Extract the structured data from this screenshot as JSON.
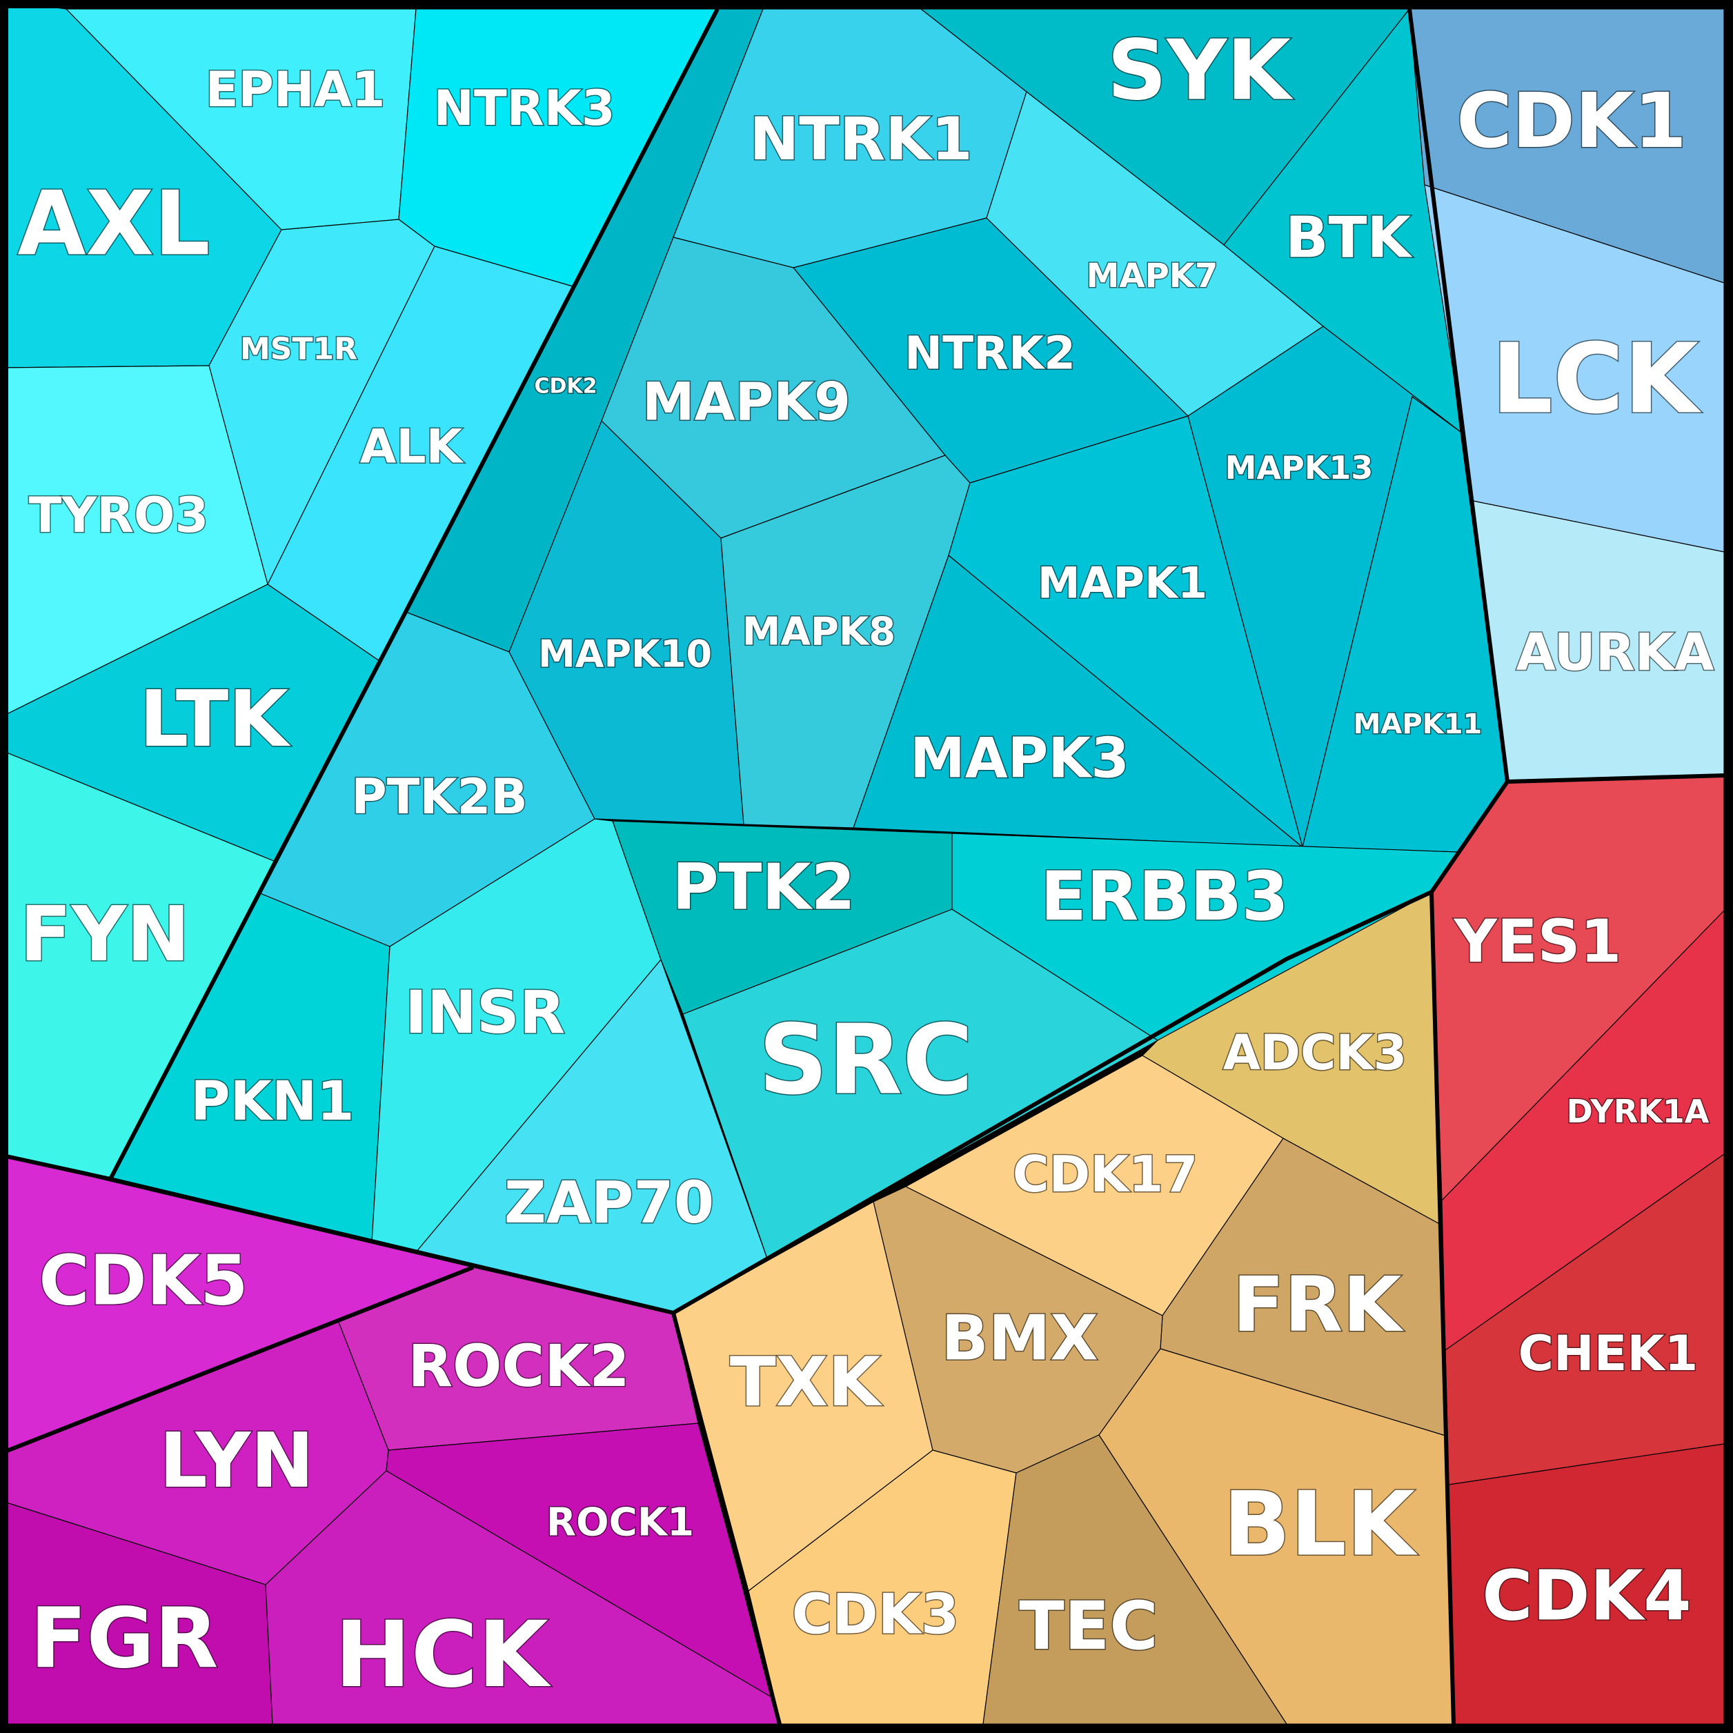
{
  "diagram": {
    "type": "voronoi-treemap",
    "groups": [
      {
        "color": "#00c8d8",
        "cells": [
          {
            "name": "AXL",
            "color": "#0dd6e6"
          },
          {
            "name": "EPHA1",
            "color": "#3ff0fc"
          },
          {
            "name": "NTRK3",
            "color": "#00e8f6"
          },
          {
            "name": "MST1R",
            "color": "#3fe9fb"
          },
          {
            "name": "ALK",
            "color": "#3ae4fc"
          },
          {
            "name": "TYRO3",
            "color": "#52f8fd"
          },
          {
            "name": "LTK",
            "color": "#05cdd9"
          },
          {
            "name": "FYN",
            "color": "#3ef5ea"
          },
          {
            "name": "CDK2",
            "color": "#00b5c6"
          },
          {
            "name": "NTRK1",
            "color": "#38d2ec"
          },
          {
            "name": "SYK",
            "color": "#00bcc9"
          },
          {
            "name": "MAPK7",
            "color": "#47e3f5"
          },
          {
            "name": "BTK",
            "color": "#00c5d0"
          },
          {
            "name": "NTRK2",
            "color": "#00bcd2"
          },
          {
            "name": "MAPK9",
            "color": "#36c8dc"
          },
          {
            "name": "MAPK13",
            "color": "#00bcd2"
          },
          {
            "name": "MAPK10",
            "color": "#0dbad4"
          },
          {
            "name": "MAPK8",
            "color": "#35cbdc"
          },
          {
            "name": "MAPK1",
            "color": "#00c3d7"
          },
          {
            "name": "MAPK3",
            "color": "#00bcd0"
          },
          {
            "name": "MAPK11",
            "color": "#00c0d4"
          },
          {
            "name": "PTK2B",
            "color": "#30cfe8"
          },
          {
            "name": "PKN1",
            "color": "#00d4d8"
          },
          {
            "name": "INSR",
            "color": "#35ebee"
          },
          {
            "name": "ZAP70",
            "color": "#46e1f2"
          },
          {
            "name": "PTK2",
            "color": "#00bbbb"
          },
          {
            "name": "ERBB3",
            "color": "#00cfd5"
          },
          {
            "name": "SRC",
            "color": "#29d5db"
          }
        ]
      },
      {
        "color": "#8cc8f0",
        "cells": [
          {
            "name": "CDK1",
            "color": "#6aaad8"
          },
          {
            "name": "LCK",
            "color": "#98d4fc"
          },
          {
            "name": "AURKA",
            "color": "#b5eaf9"
          }
        ]
      },
      {
        "color": "#e03040",
        "cells": [
          {
            "name": "YES1",
            "color": "#e84a55"
          },
          {
            "name": "DYRK1A",
            "color": "#e6334a"
          },
          {
            "name": "CHEK1",
            "color": "#d6353c"
          },
          {
            "name": "CDK4",
            "color": "#d12733"
          }
        ]
      },
      {
        "color": "#e8b870",
        "cells": [
          {
            "name": "ADCK3",
            "color": "#e3c26c"
          },
          {
            "name": "CDK17",
            "color": "#fdd088"
          },
          {
            "name": "FRK",
            "color": "#cfa666"
          },
          {
            "name": "BMX",
            "color": "#d4aa6a"
          },
          {
            "name": "TXK",
            "color": "#fdd088"
          },
          {
            "name": "BLK",
            "color": "#eab86c"
          },
          {
            "name": "CDK3",
            "color": "#fdcd7e"
          },
          {
            "name": "TEC",
            "color": "#c49d5d"
          }
        ]
      },
      {
        "color": "#d020c0",
        "cells": [
          {
            "name": "CDK5",
            "color": "#d82ad2"
          },
          {
            "name": "ROCK2",
            "color": "#d22fbe"
          },
          {
            "name": "LYN",
            "color": "#cf21c2"
          },
          {
            "name": "ROCK1",
            "color": "#c60fb2"
          },
          {
            "name": "FGR",
            "color": "#c10cae"
          },
          {
            "name": "HCK",
            "color": "#ca1fbd"
          }
        ]
      }
    ]
  }
}
